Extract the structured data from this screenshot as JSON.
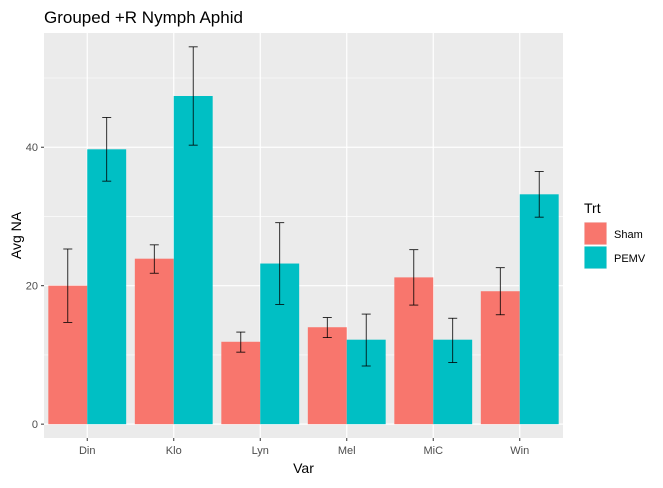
{
  "chart_data": {
    "type": "bar",
    "title": "Grouped +R Nymph Aphid",
    "xlabel": "Var",
    "ylabel": "Avg NA",
    "categories": [
      "Din",
      "Klo",
      "Lyn",
      "Mel",
      "MiC",
      "Win"
    ],
    "ylim": [
      -2,
      56.5
    ],
    "yticks": [
      0,
      20,
      40
    ],
    "grid": true,
    "legend": {
      "title": "Trt",
      "position": "right"
    },
    "series": [
      {
        "name": "Sham",
        "color": "#F8766D",
        "values": [
          20.0,
          23.9,
          11.9,
          14.0,
          21.2,
          19.2
        ],
        "error_low": [
          14.7,
          21.8,
          10.4,
          12.5,
          17.2,
          15.8
        ],
        "error_high": [
          25.3,
          25.9,
          13.3,
          15.4,
          25.2,
          22.6
        ]
      },
      {
        "name": "PEMV",
        "color": "#00BFC4",
        "values": [
          39.7,
          47.4,
          23.2,
          12.2,
          12.2,
          33.2
        ],
        "error_low": [
          35.1,
          40.3,
          17.3,
          8.4,
          8.9,
          29.9
        ],
        "error_high": [
          44.3,
          54.5,
          29.1,
          15.9,
          15.3,
          36.5
        ]
      }
    ]
  }
}
